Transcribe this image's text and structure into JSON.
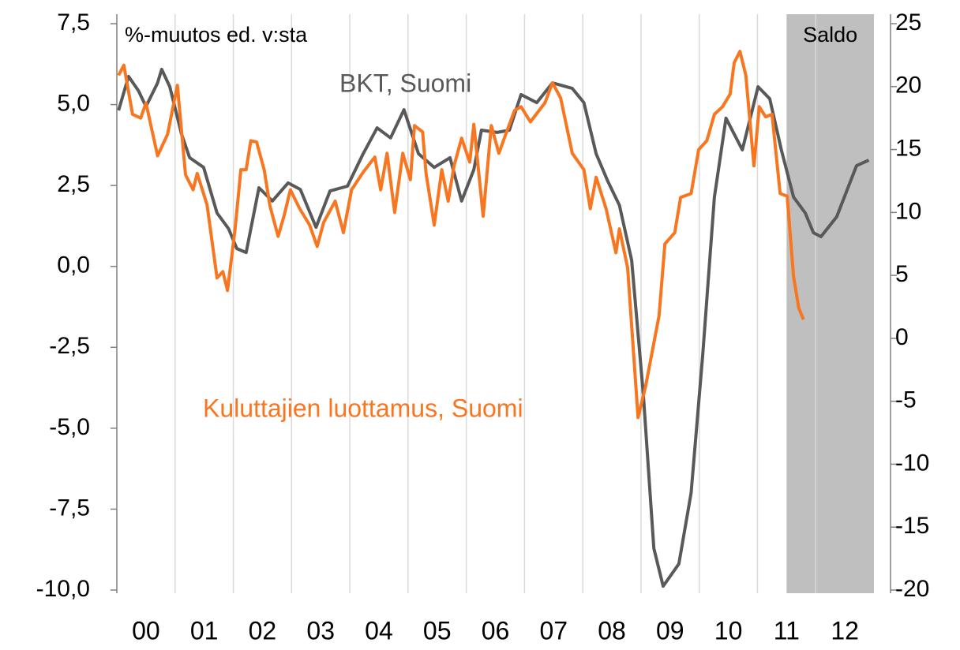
{
  "chart_data": {
    "type": "line",
    "annotations": [
      "%-muutos ed. v:sta",
      "BKT, Suomi",
      "Kuluttajien luottamus, Suomi"
    ],
    "shade_label": "Saldo",
    "shade_x": [
      2011.5,
      2013
    ],
    "shade_color": "#bfbfbf",
    "categories": [
      "00",
      "01",
      "02",
      "03",
      "04",
      "05",
      "06",
      "07",
      "08",
      "09",
      "10",
      "11",
      "12"
    ],
    "xlim": [
      2000,
      2013
    ],
    "grid": true,
    "ylim": [
      -10,
      7.5
    ],
    "yticks": [
      {
        "value": -10,
        "label": "-10,0"
      },
      {
        "value": -7.5,
        "label": "-7,5"
      },
      {
        "value": -5,
        "label": "-5,0"
      },
      {
        "value": -2.5,
        "label": "-2,5"
      },
      {
        "value": 0,
        "label": "0,0"
      },
      {
        "value": 2.5,
        "label": "2,5"
      },
      {
        "value": 5,
        "label": "5,0"
      },
      {
        "value": 7.5,
        "label": "7,5"
      }
    ],
    "y2lim": [
      -20,
      25
    ],
    "y2ticks": [
      -20,
      -15,
      -10,
      -5,
      0,
      5,
      10,
      15,
      20,
      25
    ],
    "series": [
      {
        "name": "BKT, Suomi",
        "color": "#595959",
        "axis": "y",
        "x": [
          2000.03,
          2000.2,
          2000.37,
          2000.5,
          2000.7,
          2000.77,
          2000.91,
          2001.11,
          2001.25,
          2001.49,
          2001.72,
          2001.92,
          2002.06,
          2002.22,
          2002.44,
          2002.67,
          2002.94,
          2003.15,
          2003.42,
          2003.66,
          2003.96,
          2004.23,
          2004.47,
          2004.7,
          2004.93,
          2005.18,
          2005.45,
          2005.72,
          2005.92,
          2006.13,
          2006.26,
          2006.53,
          2006.74,
          2006.94,
          2007.21,
          2007.48,
          2007.82,
          2008.02,
          2008.23,
          2008.43,
          2008.63,
          2008.84,
          2009.04,
          2009.22,
          2009.38,
          2009.65,
          2009.86,
          2010.06,
          2010.26,
          2010.46,
          2010.74,
          2011.01,
          2011.21,
          2011.41,
          2011.62,
          2011.82,
          2011.96,
          2012.09,
          2012.36,
          2012.7,
          2012.91
        ],
        "values": [
          4.82,
          5.87,
          5.43,
          4.94,
          5.67,
          6.09,
          5.55,
          4.09,
          3.36,
          3.06,
          1.65,
          1.16,
          0.55,
          0.43,
          2.43,
          2.02,
          2.58,
          2.38,
          1.21,
          2.33,
          2.48,
          3.48,
          4.28,
          3.97,
          4.84,
          3.48,
          3.06,
          3.36,
          2.02,
          2.99,
          4.21,
          4.14,
          4.21,
          5.31,
          5.06,
          5.67,
          5.5,
          5.06,
          3.48,
          2.63,
          1.89,
          0.19,
          -3.96,
          -8.71,
          -9.88,
          -9.19,
          -7.0,
          -2.74,
          2.14,
          4.58,
          3.6,
          5.55,
          5.18,
          3.6,
          2.14,
          1.65,
          1.04,
          0.92,
          1.53,
          3.11,
          3.28
        ]
      },
      {
        "name": "Kuluttajien luottamus, Suomi",
        "color": "#f7761f",
        "axis": "y2",
        "x": [
          2000.03,
          2000.12,
          2000.27,
          2000.41,
          2000.5,
          2000.7,
          2000.87,
          2001.04,
          2001.18,
          2001.31,
          2001.38,
          2001.55,
          2001.72,
          2001.82,
          2001.9,
          2002.03,
          2002.13,
          2002.22,
          2002.3,
          2002.4,
          2002.53,
          2002.63,
          2002.77,
          2002.87,
          2002.98,
          2003.14,
          2003.31,
          2003.44,
          2003.55,
          2003.75,
          2003.89,
          2004.03,
          2004.23,
          2004.43,
          2004.53,
          2004.64,
          2004.77,
          2004.91,
          2005.04,
          2005.11,
          2005.25,
          2005.31,
          2005.45,
          2005.58,
          2005.69,
          2005.79,
          2005.92,
          2006.06,
          2006.13,
          2006.29,
          2006.43,
          2006.56,
          2006.7,
          2006.83,
          2006.94,
          2007.1,
          2007.35,
          2007.48,
          2007.62,
          2007.82,
          2008.02,
          2008.13,
          2008.23,
          2008.4,
          2008.57,
          2008.63,
          2008.77,
          2008.95,
          2009.08,
          2009.31,
          2009.41,
          2009.58,
          2009.68,
          2009.86,
          2009.99,
          2010.13,
          2010.26,
          2010.4,
          2010.53,
          2010.6,
          2010.7,
          2010.8,
          2010.94,
          2011.03,
          2011.14,
          2011.25,
          2011.39,
          2011.51,
          2011.62,
          2011.71,
          2011.79
        ],
        "values": [
          20.9,
          21.7,
          17.8,
          17.5,
          18.7,
          14.5,
          16.2,
          20.1,
          13.0,
          11.8,
          13.1,
          10.6,
          4.8,
          5.3,
          3.8,
          8.7,
          13.4,
          13.4,
          15.7,
          15.6,
          13.4,
          10.5,
          8.1,
          9.7,
          11.8,
          10.3,
          9.0,
          7.3,
          9.2,
          10.9,
          8.4,
          11.8,
          13.2,
          14.4,
          11.8,
          14.7,
          10.0,
          14.7,
          12.6,
          16.9,
          16.4,
          13.1,
          9.0,
          13.4,
          10.9,
          13.7,
          15.9,
          14.0,
          17.0,
          9.7,
          16.9,
          14.7,
          16.5,
          18.1,
          18.4,
          17.2,
          18.7,
          20.3,
          19.1,
          14.7,
          13.4,
          10.3,
          12.8,
          10.3,
          6.8,
          8.7,
          5.6,
          -6.3,
          -3.8,
          1.8,
          7.5,
          8.4,
          11.2,
          11.5,
          15.0,
          15.7,
          17.8,
          18.4,
          19.4,
          21.9,
          22.8,
          20.9,
          13.7,
          18.4,
          17.6,
          17.8,
          11.5,
          11.3,
          4.9,
          2.4,
          1.5
        ]
      }
    ]
  }
}
